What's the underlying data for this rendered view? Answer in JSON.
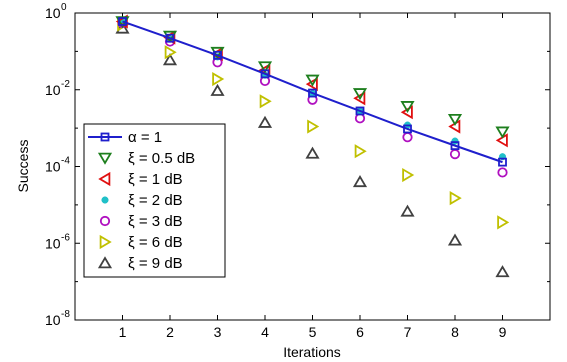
{
  "chart_data": {
    "type": "scatter",
    "xlabel": "Iterations",
    "ylabel": "Success",
    "x": [
      1,
      2,
      3,
      4,
      5,
      6,
      7,
      8,
      9
    ],
    "xlim": [
      0,
      10
    ],
    "xticks": [
      "1",
      "2",
      "3",
      "4",
      "5",
      "6",
      "7",
      "8",
      "9"
    ],
    "ylim": [
      1e-08,
      1
    ],
    "yscale": "log",
    "yticks": [
      {
        "base": "10",
        "exp": "0"
      },
      {
        "base": "10",
        "exp": "-2"
      },
      {
        "base": "10",
        "exp": "-4"
      },
      {
        "base": "10",
        "exp": "-6"
      },
      {
        "base": "10",
        "exp": "-8"
      }
    ],
    "grid": false,
    "legend_position": "bottom-left",
    "series": [
      {
        "name": "α = 1",
        "marker": "square",
        "line": true,
        "color": "#1f1fcc",
        "values": [
          0.6,
          0.22,
          0.079,
          0.026,
          0.0082,
          0.0028,
          0.00095,
          0.00035,
          0.00013
        ]
      },
      {
        "name": "ξ = 0.5 dB",
        "marker": "triangle-down",
        "color": "#1e7f1e",
        "values": [
          0.6,
          0.25,
          0.095,
          0.04,
          0.018,
          0.008,
          0.0037,
          0.0017,
          0.0008
        ]
      },
      {
        "name": "ξ = 1 dB",
        "marker": "triangle-left",
        "color": "#e01010",
        "values": [
          0.6,
          0.23,
          0.085,
          0.032,
          0.014,
          0.006,
          0.0026,
          0.0011,
          0.00048
        ]
      },
      {
        "name": "ξ = 2 dB",
        "marker": "dot",
        "color": "#20c0c8",
        "values": [
          0.6,
          0.21,
          0.072,
          0.024,
          0.008,
          0.0028,
          0.0012,
          0.00046,
          0.00018
        ]
      },
      {
        "name": "ξ = 3 dB",
        "marker": "circle",
        "color": "#b010c0",
        "values": [
          0.55,
          0.18,
          0.052,
          0.017,
          0.0055,
          0.0018,
          0.00058,
          0.00021,
          7e-05
        ]
      },
      {
        "name": "ξ = 6 dB",
        "marker": "triangle-right",
        "color": "#c0c000",
        "values": [
          0.5,
          0.095,
          0.019,
          0.005,
          0.0011,
          0.00025,
          6e-05,
          1.5e-05,
          3.5e-06
        ]
      },
      {
        "name": "ξ = 9 dB",
        "marker": "triangle-up",
        "color": "#404040",
        "values": [
          0.4,
          0.06,
          0.0095,
          0.0014,
          0.00022,
          4e-05,
          6.8e-06,
          1.2e-06,
          1.8e-07
        ]
      }
    ]
  }
}
